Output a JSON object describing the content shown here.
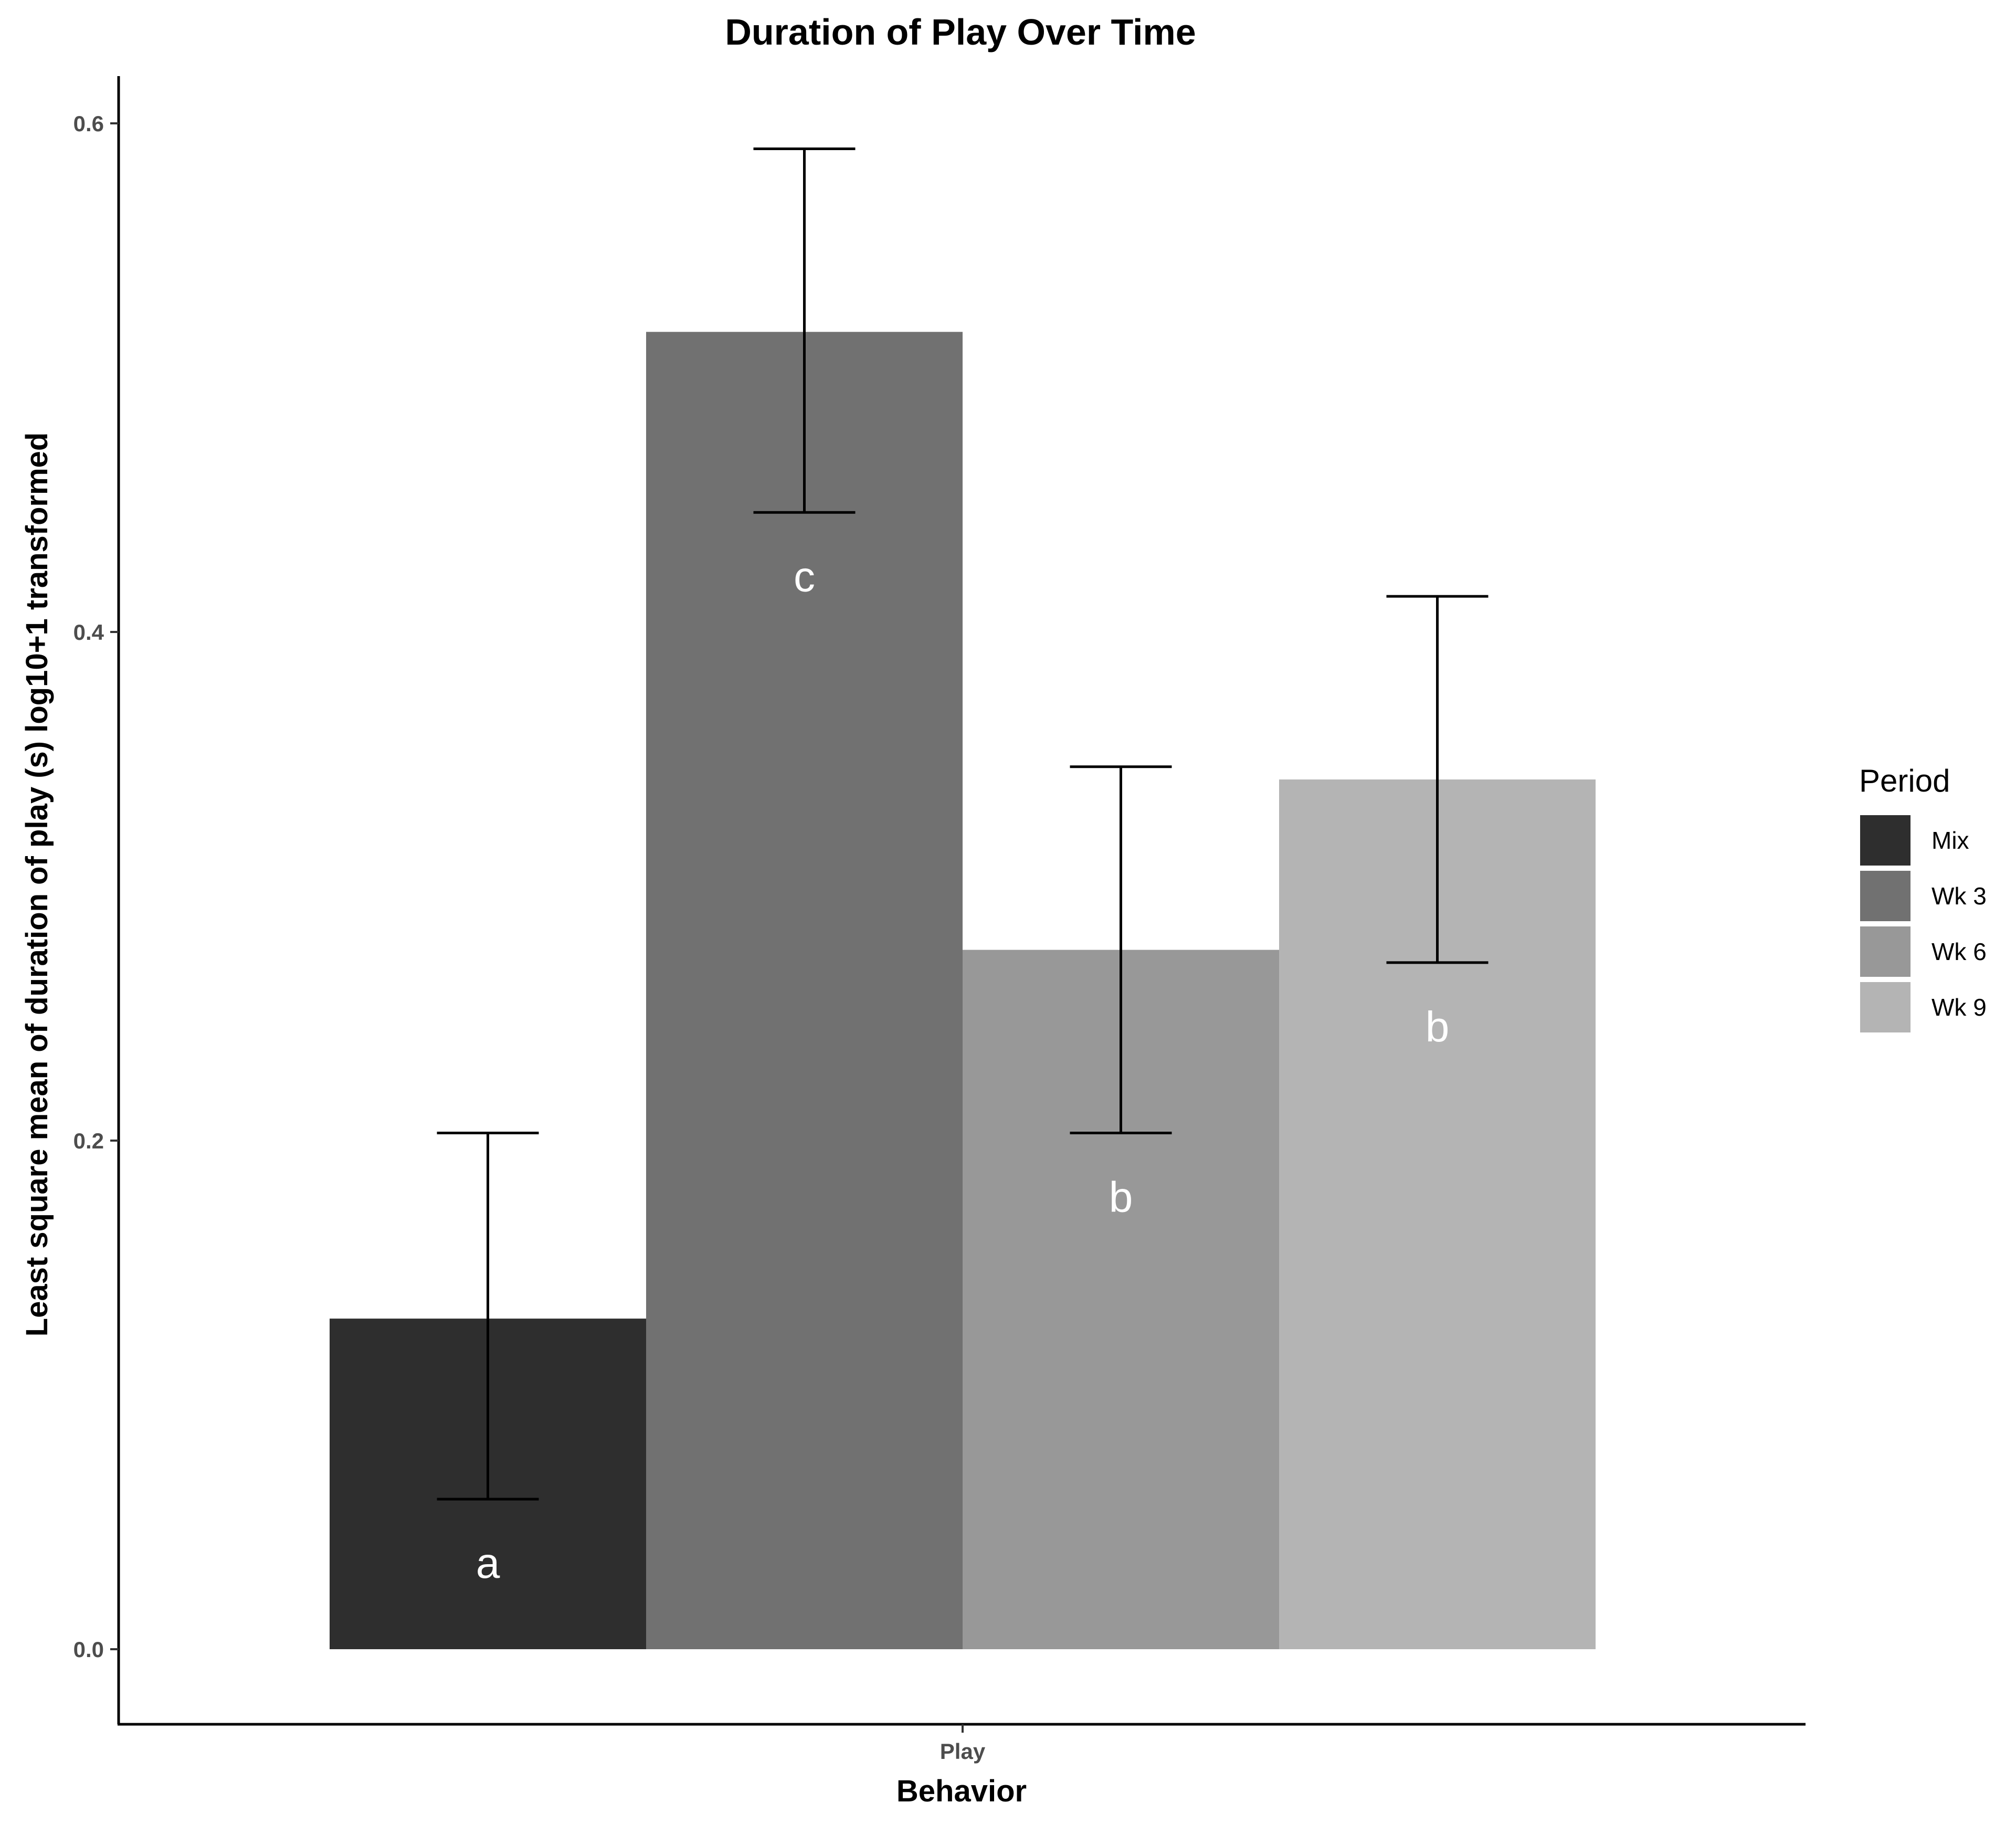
{
  "chart_data": {
    "type": "bar",
    "title": "Duration of Play Over Time",
    "xlabel": "Behavior",
    "ylabel": "Least square mean of duration of play (s) log10+1 transformed",
    "categories": [
      "Play"
    ],
    "ylim": [
      -0.03,
      0.62
    ],
    "yticks": [
      0.0,
      0.2,
      0.4,
      0.6
    ],
    "ytick_labels": [
      "0.0",
      "0.2",
      "0.4",
      "0.6"
    ],
    "grid": false,
    "legend": {
      "title": "Period",
      "position": "right"
    },
    "series": [
      {
        "name": "Mix",
        "values": [
          0.13
        ],
        "error_low": [
          0.059
        ],
        "error_high": [
          0.203
        ],
        "color": "#2e2e2e",
        "label": "a"
      },
      {
        "name": "Wk 3",
        "values": [
          0.518
        ],
        "error_low": [
          0.447
        ],
        "error_high": [
          0.59
        ],
        "color": "#717171",
        "label": "c"
      },
      {
        "name": "Wk 6",
        "values": [
          0.275
        ],
        "error_low": [
          0.203
        ],
        "error_high": [
          0.347
        ],
        "color": "#989898",
        "label": "b"
      },
      {
        "name": "Wk 9",
        "values": [
          0.342
        ],
        "error_low": [
          0.27
        ],
        "error_high": [
          0.414
        ],
        "color": "#b4b4b4",
        "label": "b"
      }
    ]
  }
}
